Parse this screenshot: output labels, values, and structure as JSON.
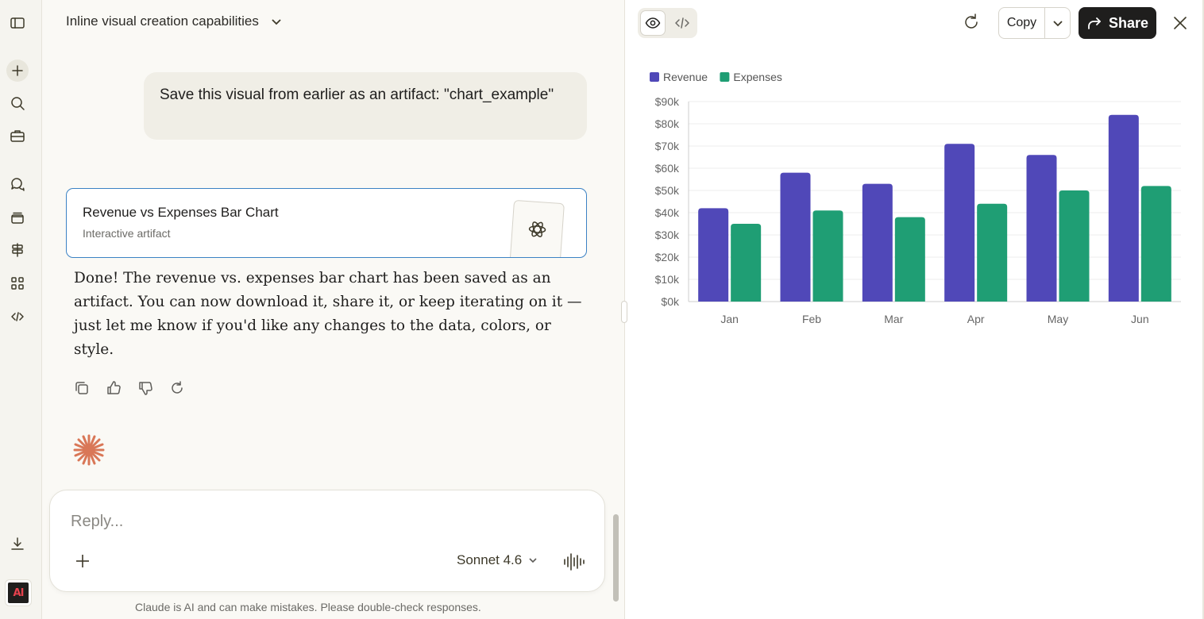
{
  "app": {
    "conversation_title": "Inline visual creation capabilities"
  },
  "rail": {
    "icons": [
      "sidebar-toggle-icon",
      "new-chat-icon",
      "search-icon",
      "projects-icon",
      "chats-icon",
      "artifacts-icon",
      "signpost-icon",
      "apps-icon",
      "code-icon",
      "download-icon"
    ],
    "avatar_text": "AI"
  },
  "chat": {
    "user_message": "Save this visual from earlier as an artifact: \"chart_example\"",
    "artifact_card": {
      "title": "Revenue vs Expenses Bar Chart",
      "subtitle": "Interactive artifact"
    },
    "assistant_message": "Done! The revenue vs. expenses bar chart has been saved as an artifact. You can now download it, share it, or keep iterating on it — just let me know if you'd like any changes to the data, colors, or style.",
    "composer": {
      "placeholder": "Reply...",
      "model": "Sonnet 4.6"
    },
    "disclaimer": "Claude is AI and can make mistakes. Please double-check responses."
  },
  "panel": {
    "copy_label": "Copy",
    "share_label": "Share"
  },
  "colors": {
    "revenue": "#5048b8",
    "expenses": "#1f9e74",
    "accent_orange": "#d97757",
    "share_bg": "#1f1e1d"
  },
  "chart_data": {
    "type": "bar",
    "categories": [
      "Jan",
      "Feb",
      "Mar",
      "Apr",
      "May",
      "Jun"
    ],
    "series": [
      {
        "name": "Revenue",
        "values": [
          42000,
          58000,
          53000,
          71000,
          66000,
          84000
        ]
      },
      {
        "name": "Expenses",
        "values": [
          35000,
          41000,
          38000,
          44000,
          50000,
          52000
        ]
      }
    ],
    "ylim": [
      0,
      90000
    ],
    "yticks": [
      "$0k",
      "$10k",
      "$20k",
      "$30k",
      "$40k",
      "$50k",
      "$60k",
      "$70k",
      "$80k",
      "$90k"
    ],
    "legend_position": "top-left",
    "grid": true
  }
}
